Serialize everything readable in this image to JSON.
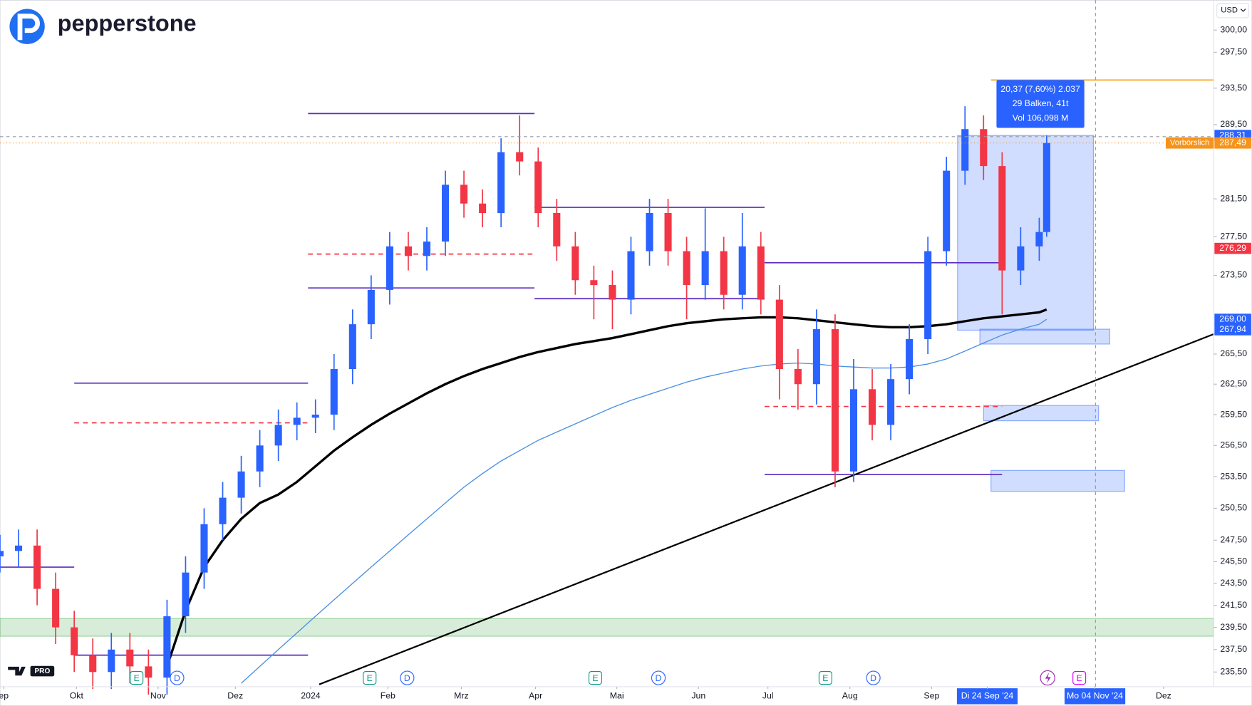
{
  "logo": "pepperstone",
  "currency": "USD",
  "measure": {
    "lines": [
      "20,37 (7,60%) 2.037",
      "29 Balken, 41t",
      "Vol 106,098 M"
    ]
  },
  "premarket_tag": "Vorbörslich",
  "chart_data": {
    "type": "candlestick",
    "log_scale": true,
    "xlim": [
      0,
      327
    ],
    "ylim": [
      234.2,
      303.4
    ],
    "xticks": [
      {
        "value": 1,
        "label": "ep"
      },
      {
        "value": 20.6,
        "label": "Okt"
      },
      {
        "value": 42.6,
        "label": "Nov"
      },
      {
        "value": 63.4,
        "label": "Dez"
      },
      {
        "value": 83.7,
        "label": "2024"
      },
      {
        "value": 104.5,
        "label": "Feb"
      },
      {
        "value": 124.3,
        "label": "Mrz"
      },
      {
        "value": 144.3,
        "label": "Apr"
      },
      {
        "value": 166.2,
        "label": "Mai"
      },
      {
        "value": 188.2,
        "label": "Jun"
      },
      {
        "value": 206.9,
        "label": "Jul"
      },
      {
        "value": 229,
        "label": "Aug"
      },
      {
        "value": 251,
        "label": "Sep"
      },
      {
        "value": 266,
        "label": "Di 24 Sep '24"
      },
      {
        "value": 295,
        "label": "Mo 04 Nov '24"
      },
      {
        "value": 313.5,
        "label": "Dez"
      }
    ],
    "yticks": [
      {
        "value": 300,
        "label": "300,00"
      },
      {
        "value": 297.5,
        "label": "297,50"
      },
      {
        "value": 293.5,
        "label": "293,50"
      },
      {
        "value": 289.5,
        "label": "289,50"
      },
      {
        "value": 281.5,
        "label": "281,50"
      },
      {
        "value": 277.5,
        "label": "277,50"
      },
      {
        "value": 273.5,
        "label": "273,50"
      },
      {
        "value": 265.5,
        "label": "265,50"
      },
      {
        "value": 262.5,
        "label": "262,50"
      },
      {
        "value": 259.5,
        "label": "259,50"
      },
      {
        "value": 256.5,
        "label": "256,50"
      },
      {
        "value": 253.5,
        "label": "253,50"
      },
      {
        "value": 250.5,
        "label": "250,50"
      },
      {
        "value": 247.5,
        "label": "247,50"
      },
      {
        "value": 245.5,
        "label": "245,50"
      },
      {
        "value": 243.5,
        "label": "243,50"
      },
      {
        "value": 241.5,
        "label": "241,50"
      },
      {
        "value": 239.5,
        "label": "239,50"
      },
      {
        "value": 237.5,
        "label": "237,50"
      },
      {
        "value": 235.5,
        "label": "235,50"
      }
    ],
    "up_color": "#2962ff",
    "down_color": "#f23645",
    "x": [
      0,
      5,
      10,
      15,
      20,
      25,
      30,
      35,
      40,
      45,
      50,
      55,
      60,
      65,
      70,
      75,
      80,
      85,
      90,
      95,
      100,
      105,
      110,
      115,
      120,
      125,
      130,
      135,
      140,
      145,
      150,
      155,
      160,
      165,
      170,
      175,
      180,
      185,
      190,
      195,
      200,
      205,
      210,
      215,
      220,
      225,
      230,
      235,
      240,
      245,
      250,
      255,
      260,
      265,
      270,
      275,
      280,
      282
    ],
    "open": [
      246,
      246.5,
      247,
      243,
      239.5,
      237,
      235.5,
      237.5,
      236,
      235,
      240.5,
      244.5,
      249,
      251.5,
      254,
      256.5,
      258.5,
      259.2,
      259.5,
      264,
      268.5,
      272,
      276.5,
      275.5,
      277,
      283,
      281,
      280,
      286.5,
      285.5,
      280,
      276.5,
      273,
      272.5,
      271,
      276,
      280,
      276,
      272.5,
      276,
      271.5,
      276.5,
      271,
      264,
      262.5,
      268,
      254,
      262,
      258.5,
      263,
      267,
      276,
      284.5,
      289,
      285,
      274,
      276.5,
      278
    ],
    "high": [
      248,
      248.5,
      248.5,
      244.5,
      241,
      238.5,
      239,
      239,
      237.5,
      242,
      246,
      250.5,
      253,
      255.5,
      258,
      260,
      260.7,
      261,
      265.5,
      270,
      273.5,
      278,
      278,
      278.5,
      284.5,
      284.5,
      282.5,
      288,
      290.5,
      287,
      281.5,
      278,
      274.5,
      274,
      277.5,
      281.5,
      281.5,
      277.5,
      280.5,
      277.5,
      280,
      278,
      272.5,
      266,
      270,
      269.5,
      265,
      264,
      264.5,
      268.5,
      277.5,
      286,
      291.5,
      290.5,
      286.5,
      278.5,
      279.5,
      288.31
    ],
    "low": [
      244.5,
      245,
      241.5,
      238,
      235.5,
      234,
      234,
      234.5,
      233.5,
      233.5,
      239,
      243,
      247.5,
      250,
      252.5,
      255,
      257,
      257.7,
      258,
      262.5,
      267,
      270.5,
      274,
      274,
      275.5,
      279.5,
      278.5,
      278.5,
      284,
      278.5,
      275,
      271.5,
      269,
      268,
      269.5,
      274.5,
      274.5,
      269,
      271,
      270,
      270,
      269.5,
      261,
      260,
      260.5,
      252.5,
      253,
      257,
      257,
      261.5,
      265.5,
      274.5,
      283,
      283.5,
      269.5,
      272.5,
      275,
      277.5
    ],
    "close": [
      246.5,
      247,
      243,
      239.5,
      237,
      235.5,
      237.5,
      236,
      235,
      240.5,
      244.5,
      249,
      251.5,
      254,
      256.5,
      258.5,
      259.2,
      259.5,
      264,
      268.5,
      272,
      276.5,
      275.5,
      277,
      283,
      281,
      280,
      286.5,
      285.5,
      280,
      276.5,
      273,
      272.5,
      271,
      276,
      280,
      276,
      272.5,
      276,
      271.5,
      276.5,
      271,
      264,
      262.5,
      268,
      254,
      262,
      258.5,
      263,
      267,
      276,
      284.5,
      289,
      285,
      274,
      276.5,
      278,
      287.49
    ],
    "overlays": [
      {
        "color": "#000000",
        "values": [
          null,
          null,
          null,
          null,
          null,
          null,
          null,
          null,
          null,
          236,
          241,
          245,
          247.5,
          249.5,
          251,
          251.8,
          253,
          254.5,
          256,
          257.3,
          258.5,
          259.6,
          260.6,
          261.6,
          262.5,
          263.3,
          264,
          264.6,
          265.2,
          265.7,
          266.1,
          266.5,
          266.8,
          267.1,
          267.5,
          267.9,
          268.3,
          268.6,
          268.8,
          269,
          269.1,
          269.2,
          269.2,
          269.1,
          268.9,
          268.7,
          268.5,
          268.3,
          268.2,
          268.2,
          268.3,
          268.5,
          268.8,
          269.1,
          269.3,
          269.5,
          269.7,
          270
        ]
      },
      {
        "color": "#4a90e2",
        "values": [
          null,
          null,
          null,
          null,
          null,
          null,
          null,
          null,
          null,
          null,
          null,
          null,
          null,
          234.5,
          236,
          237.5,
          239,
          240.5,
          242,
          243.5,
          245,
          246.5,
          248,
          249.5,
          251,
          252.5,
          253.8,
          255,
          256,
          257,
          257.8,
          258.6,
          259.4,
          260.2,
          260.9,
          261.5,
          262.1,
          262.7,
          263.2,
          263.6,
          264,
          264.3,
          264.5,
          264.6,
          264.5,
          264.3,
          264.2,
          264.1,
          264.1,
          264.2,
          264.5,
          265,
          265.8,
          266.6,
          267.4,
          268,
          268.5,
          269
        ]
      }
    ],
    "trendline": {
      "x": [
        86,
        327
      ],
      "values": [
        234.4,
        267.5
      ],
      "color": "#000000"
    },
    "levels": [
      {
        "value": 245,
        "x": [
          0,
          20
        ],
        "color": "#5b2bbf",
        "dashed": false
      },
      {
        "value": 262.6,
        "x": [
          20,
          83
        ],
        "color": "#5b2bbf",
        "dashed": false
      },
      {
        "value": 237,
        "x": [
          20,
          83
        ],
        "color": "#5b2bbf",
        "dashed": false
      },
      {
        "value": 258.7,
        "x": [
          20,
          83
        ],
        "color": "#f23645",
        "dashed": true
      },
      {
        "value": 290.7,
        "x": [
          83,
          144
        ],
        "color": "#5b2bbf",
        "dashed": false
      },
      {
        "value": 272.2,
        "x": [
          83,
          144
        ],
        "color": "#5b2bbf",
        "dashed": false
      },
      {
        "value": 275.7,
        "x": [
          83,
          144
        ],
        "color": "#f23645",
        "dashed": true
      },
      {
        "value": 280.6,
        "x": [
          144,
          206
        ],
        "color": "#5b2bbf",
        "dashed": false
      },
      {
        "value": 271.1,
        "x": [
          144,
          206
        ],
        "color": "#5b2bbf",
        "dashed": false
      },
      {
        "value": 274.8,
        "x": [
          206,
          270
        ],
        "color": "#5b2bbf",
        "dashed": false
      },
      {
        "value": 253.7,
        "x": [
          206,
          270
        ],
        "color": "#5b2bbf",
        "dashed": false
      },
      {
        "value": 260.3,
        "x": [
          206,
          270
        ],
        "color": "#f23645",
        "dashed": true
      },
      {
        "value": 294.4,
        "x": [
          267,
          327
        ],
        "color": "#f7a21b",
        "dashed": false
      }
    ],
    "zones": [
      {
        "x": [
          0,
          327
        ],
        "range": [
          238.7,
          240.3
        ],
        "color": "#4caf50"
      },
      {
        "x": [
          258,
          294.6
        ],
        "range": [
          267.9,
          288.31
        ],
        "color": "#2962ff"
      },
      {
        "x": [
          264,
          299
        ],
        "range": [
          266.5,
          268
        ],
        "color": "#2962ff"
      },
      {
        "x": [
          265,
          296
        ],
        "range": [
          258.9,
          260.4
        ],
        "color": "#2962ff"
      },
      {
        "x": [
          267,
          303
        ],
        "range": [
          252.1,
          254.1
        ],
        "color": "#2962ff"
      }
    ],
    "price_labels": [
      {
        "value": 288.31,
        "label": "288,31",
        "color": "#2962ff"
      },
      {
        "value": 287.49,
        "label": "287,49",
        "color": "#f7931a"
      },
      {
        "value": 276.29,
        "label": "276,29",
        "color": "#f23645"
      },
      {
        "value": 269,
        "label": "269,00",
        "color": "#2962ff"
      },
      {
        "value": 267.94,
        "label": "267,94",
        "color": "#2962ff"
      }
    ],
    "events": [
      {
        "label": "E",
        "x": 36.8,
        "color": "#089981"
      },
      {
        "label": "D",
        "x": 47.7,
        "color": "#2962ff"
      },
      {
        "label": "E",
        "x": 99.6,
        "color": "#089981"
      },
      {
        "label": "D",
        "x": 109.7,
        "color": "#2962ff"
      },
      {
        "label": "E",
        "x": 160.4,
        "color": "#089981"
      },
      {
        "label": "D",
        "x": 177.4,
        "color": "#2962ff"
      },
      {
        "label": "E",
        "x": 222.4,
        "color": "#089981"
      },
      {
        "label": "D",
        "x": 235.3,
        "color": "#2962ff"
      },
      {
        "label": "E",
        "x": 290.8,
        "color": "#d500f9"
      }
    ]
  }
}
